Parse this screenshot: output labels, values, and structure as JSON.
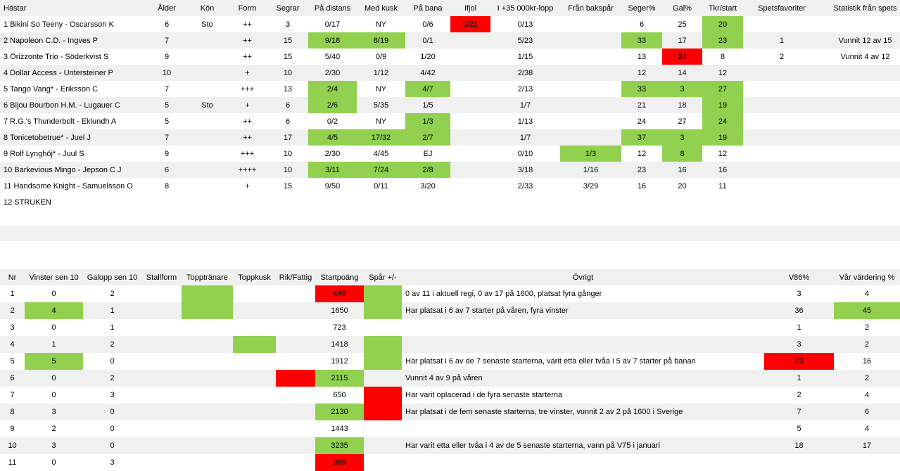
{
  "horse_table": {
    "headers": [
      "Hästar",
      "Ålder",
      "Kön",
      "Form",
      "Segrar",
      "På distans",
      "Med kusk",
      "På bana",
      "Ifjol",
      "I +35 000kr-lopp",
      "Från bakspår",
      "Seger%",
      "Gal%",
      "Tkr/start",
      "Spetsfavoriter",
      "Statistik från spets"
    ],
    "rows": [
      [
        "1 Bikini So Teeny - Oscarsson K",
        "6",
        "Sto",
        "++",
        "3",
        "0/17",
        "NY",
        "0/6",
        "0/21",
        "0/13",
        "",
        "6",
        "25",
        "20",
        "",
        ""
      ],
      [
        "2 Napoleon C.D. - Ingves P",
        "7",
        "",
        "++",
        "15",
        "9/18",
        "8/19",
        "0/1",
        "",
        "5/23",
        "",
        "33",
        "17",
        "23",
        "1",
        "Vunnit 12 av 15"
      ],
      [
        "3 Orizzonte Trio - Söderkvist S",
        "9",
        "",
        "++",
        "15",
        "5/40",
        "0/9",
        "1/20",
        "",
        "1/15",
        "",
        "13",
        "34",
        "8",
        "2",
        "Vunnit 4 av 12"
      ],
      [
        "4 Dollar Access - Untersteiner P",
        "10",
        "",
        "+",
        "10",
        "2/30",
        "1/12",
        "4/42",
        "",
        "2/38",
        "",
        "12",
        "14",
        "12",
        "",
        ""
      ],
      [
        "5 Tango Vang* - Eriksson C",
        "7",
        "",
        "+++",
        "13",
        "2/4",
        "NY",
        "4/7",
        "",
        "2/13",
        "",
        "33",
        "3",
        "27",
        "",
        ""
      ],
      [
        "6 Bijou Bourbon H.M. - Lugauer C",
        "5",
        "Sto",
        "+",
        "6",
        "2/6",
        "5/35",
        "1/5",
        "",
        "1/7",
        "",
        "21",
        "18",
        "19",
        "",
        ""
      ],
      [
        "7 R.G.'s Thunderbolt - Eklundh A",
        "5",
        "",
        "++",
        "6",
        "0/2",
        "NY",
        "1/3",
        "",
        "1/13",
        "",
        "24",
        "27",
        "24",
        "",
        ""
      ],
      [
        "8 Tonicetobetrue* - Juel J",
        "7",
        "",
        "++",
        "17",
        "4/5",
        "17/32",
        "2/7",
        "",
        "1/7",
        "",
        "37",
        "3",
        "19",
        "",
        ""
      ],
      [
        "9 Rolf Lynghöj* - Juul S",
        "9",
        "",
        "+++",
        "10",
        "2/30",
        "4/45",
        "EJ",
        "",
        "0/10",
        "1/3",
        "12",
        "8",
        "12",
        "",
        ""
      ],
      [
        "10 Barkevious Mingo - Jepson C J",
        "6",
        "",
        "++++",
        "10",
        "3/11",
        "7/24",
        "2/8",
        "",
        "3/18",
        "1/16",
        "23",
        "16",
        "16",
        "",
        ""
      ],
      [
        "11 Handsome Knight - Samuelsson O",
        "8",
        "",
        "+",
        "15",
        "9/50",
        "0/11",
        "3/20",
        "",
        "2/33",
        "3/29",
        "16",
        "20",
        "11",
        "",
        ""
      ]
    ],
    "struck": "12 STRUKEN"
  },
  "race_table": {
    "headers": [
      "Nr",
      "Vinster sen 10",
      "Galopp sen 10",
      "Stallform",
      "Topptränare",
      "Toppkusk",
      "Rik/Fattig",
      "Startpoäng",
      "Spår +/-",
      "Övrigt",
      "V86%",
      "Vår värdering %"
    ],
    "rows": [
      [
        "1",
        "0",
        "2",
        "",
        "",
        "",
        "",
        "449",
        "",
        "0 av 11 i aktuell regi, 0 av 17 på 1600, platsat fyra gånger",
        "3",
        "4"
      ],
      [
        "2",
        "4",
        "1",
        "",
        "",
        "",
        "",
        "1650",
        "",
        "Har platsat i 6 av 7 starter på våren, fyra vinster",
        "36",
        "45"
      ],
      [
        "3",
        "0",
        "1",
        "",
        "",
        "",
        "",
        "723",
        "",
        "",
        "1",
        "2"
      ],
      [
        "4",
        "1",
        "2",
        "",
        "",
        "",
        "",
        "1418",
        "",
        "",
        "3",
        "2"
      ],
      [
        "5",
        "5",
        "0",
        "",
        "",
        "",
        "",
        "1912",
        "",
        "Har platsat i 6 av de 7 senaste starterna, varit etta eller tvåa i 5 av 7 starter på banan",
        "23",
        "16"
      ],
      [
        "6",
        "0",
        "2",
        "",
        "",
        "",
        "",
        "2115",
        "",
        "Vunnit 4 av 9 på våren",
        "1",
        "2"
      ],
      [
        "7",
        "0",
        "3",
        "",
        "",
        "",
        "",
        "650",
        "",
        "Har varit oplacerad i de fyra senaste starterna",
        "2",
        "4"
      ],
      [
        "8",
        "3",
        "0",
        "",
        "",
        "",
        "",
        "2130",
        "",
        "Har platsat i de fem senaste starterna, tre vinster, vunnit 2 av 2 på 1600 i Sverige",
        "7",
        "6"
      ],
      [
        "9",
        "2",
        "0",
        "",
        "",
        "",
        "",
        "1443",
        "",
        "",
        "5",
        "4"
      ],
      [
        "10",
        "3",
        "0",
        "",
        "",
        "",
        "",
        "3235",
        "",
        "Har varit etta eller tvåa i 4 av de 5 senaste starterna, vann på V75 i januari",
        "18",
        "17"
      ],
      [
        "11",
        "0",
        "3",
        "",
        "",
        "",
        "",
        "368",
        "",
        "",
        "",
        ""
      ]
    ]
  },
  "colors": {
    "green": "#92d050",
    "red": "#ff0000",
    "stripe": "#f0f0f0"
  }
}
